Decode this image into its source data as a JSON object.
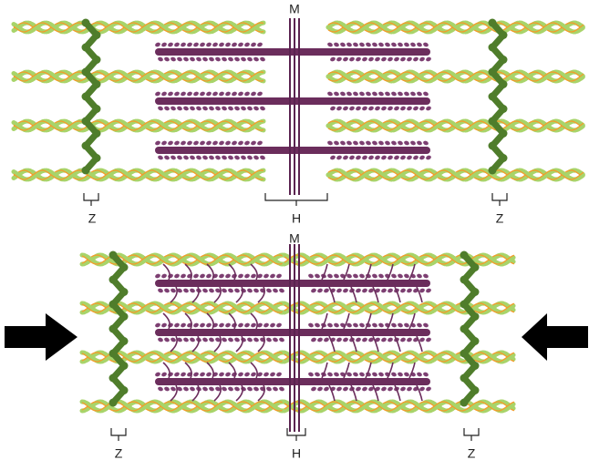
{
  "panels": [
    {
      "labels": {
        "m": "M",
        "h": "H",
        "z_left": "Z",
        "z_right": "Z"
      }
    },
    {
      "labels": {
        "m": "M",
        "h": "H",
        "z_left": "Z",
        "z_right": "Z"
      }
    }
  ]
}
